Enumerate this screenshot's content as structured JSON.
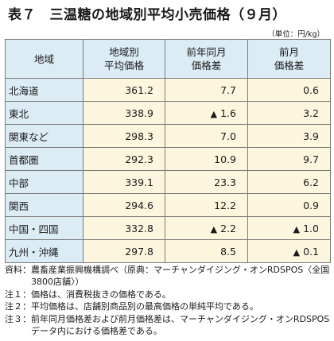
{
  "title": "表７　三温糖の地域別平均小売価格（９月）",
  "unit": "（単位：円/kg）",
  "table": {
    "headers": [
      "地域",
      "地域別\n平均価格",
      "前年同月\n価格差",
      "前月\n価格差"
    ],
    "rows": [
      {
        "region": "北海道",
        "avg": "361.2",
        "yoy": "7.7",
        "yoy_neg": false,
        "mom": "0.6",
        "mom_neg": false
      },
      {
        "region": "東北",
        "avg": "338.9",
        "yoy": "1.6",
        "yoy_neg": true,
        "mom": "3.2",
        "mom_neg": false
      },
      {
        "region": "関東など",
        "avg": "298.3",
        "yoy": "7.0",
        "yoy_neg": false,
        "mom": "3.9",
        "mom_neg": false
      },
      {
        "region": "首都圏",
        "avg": "292.3",
        "yoy": "10.9",
        "yoy_neg": false,
        "mom": "9.7",
        "mom_neg": false
      },
      {
        "region": "中部",
        "avg": "339.1",
        "yoy": "23.3",
        "yoy_neg": false,
        "mom": "6.2",
        "mom_neg": false
      },
      {
        "region": "関西",
        "avg": "294.6",
        "yoy": "12.2",
        "yoy_neg": false,
        "mom": "0.9",
        "mom_neg": false
      },
      {
        "region": "中国・四国",
        "avg": "332.8",
        "yoy": "2.2",
        "yoy_neg": true,
        "mom": "1.0",
        "mom_neg": true
      },
      {
        "region": "九州・沖縄",
        "avg": "297.8",
        "yoy": "8.5",
        "yoy_neg": false,
        "mom": "0.1",
        "mom_neg": true
      }
    ],
    "neg_marker": "▲"
  },
  "notes": [
    {
      "label": "資料：",
      "text": "農畜産業振興機構調べ（原典：マーチャンダイジング・オンRDSPOS〈全国3800店舗〉）"
    },
    {
      "label": "注１：",
      "text": "価格は、消費税抜きの価格である。"
    },
    {
      "label": "注２：",
      "text": "平均価格は、店舗別商品別の最高価格の単純平均である。"
    },
    {
      "label": "注３：",
      "text": "前年同月価格差および前月価格差は、マーチャンダイジング・オンRDSPOSデータ内における価格差である。"
    }
  ]
}
